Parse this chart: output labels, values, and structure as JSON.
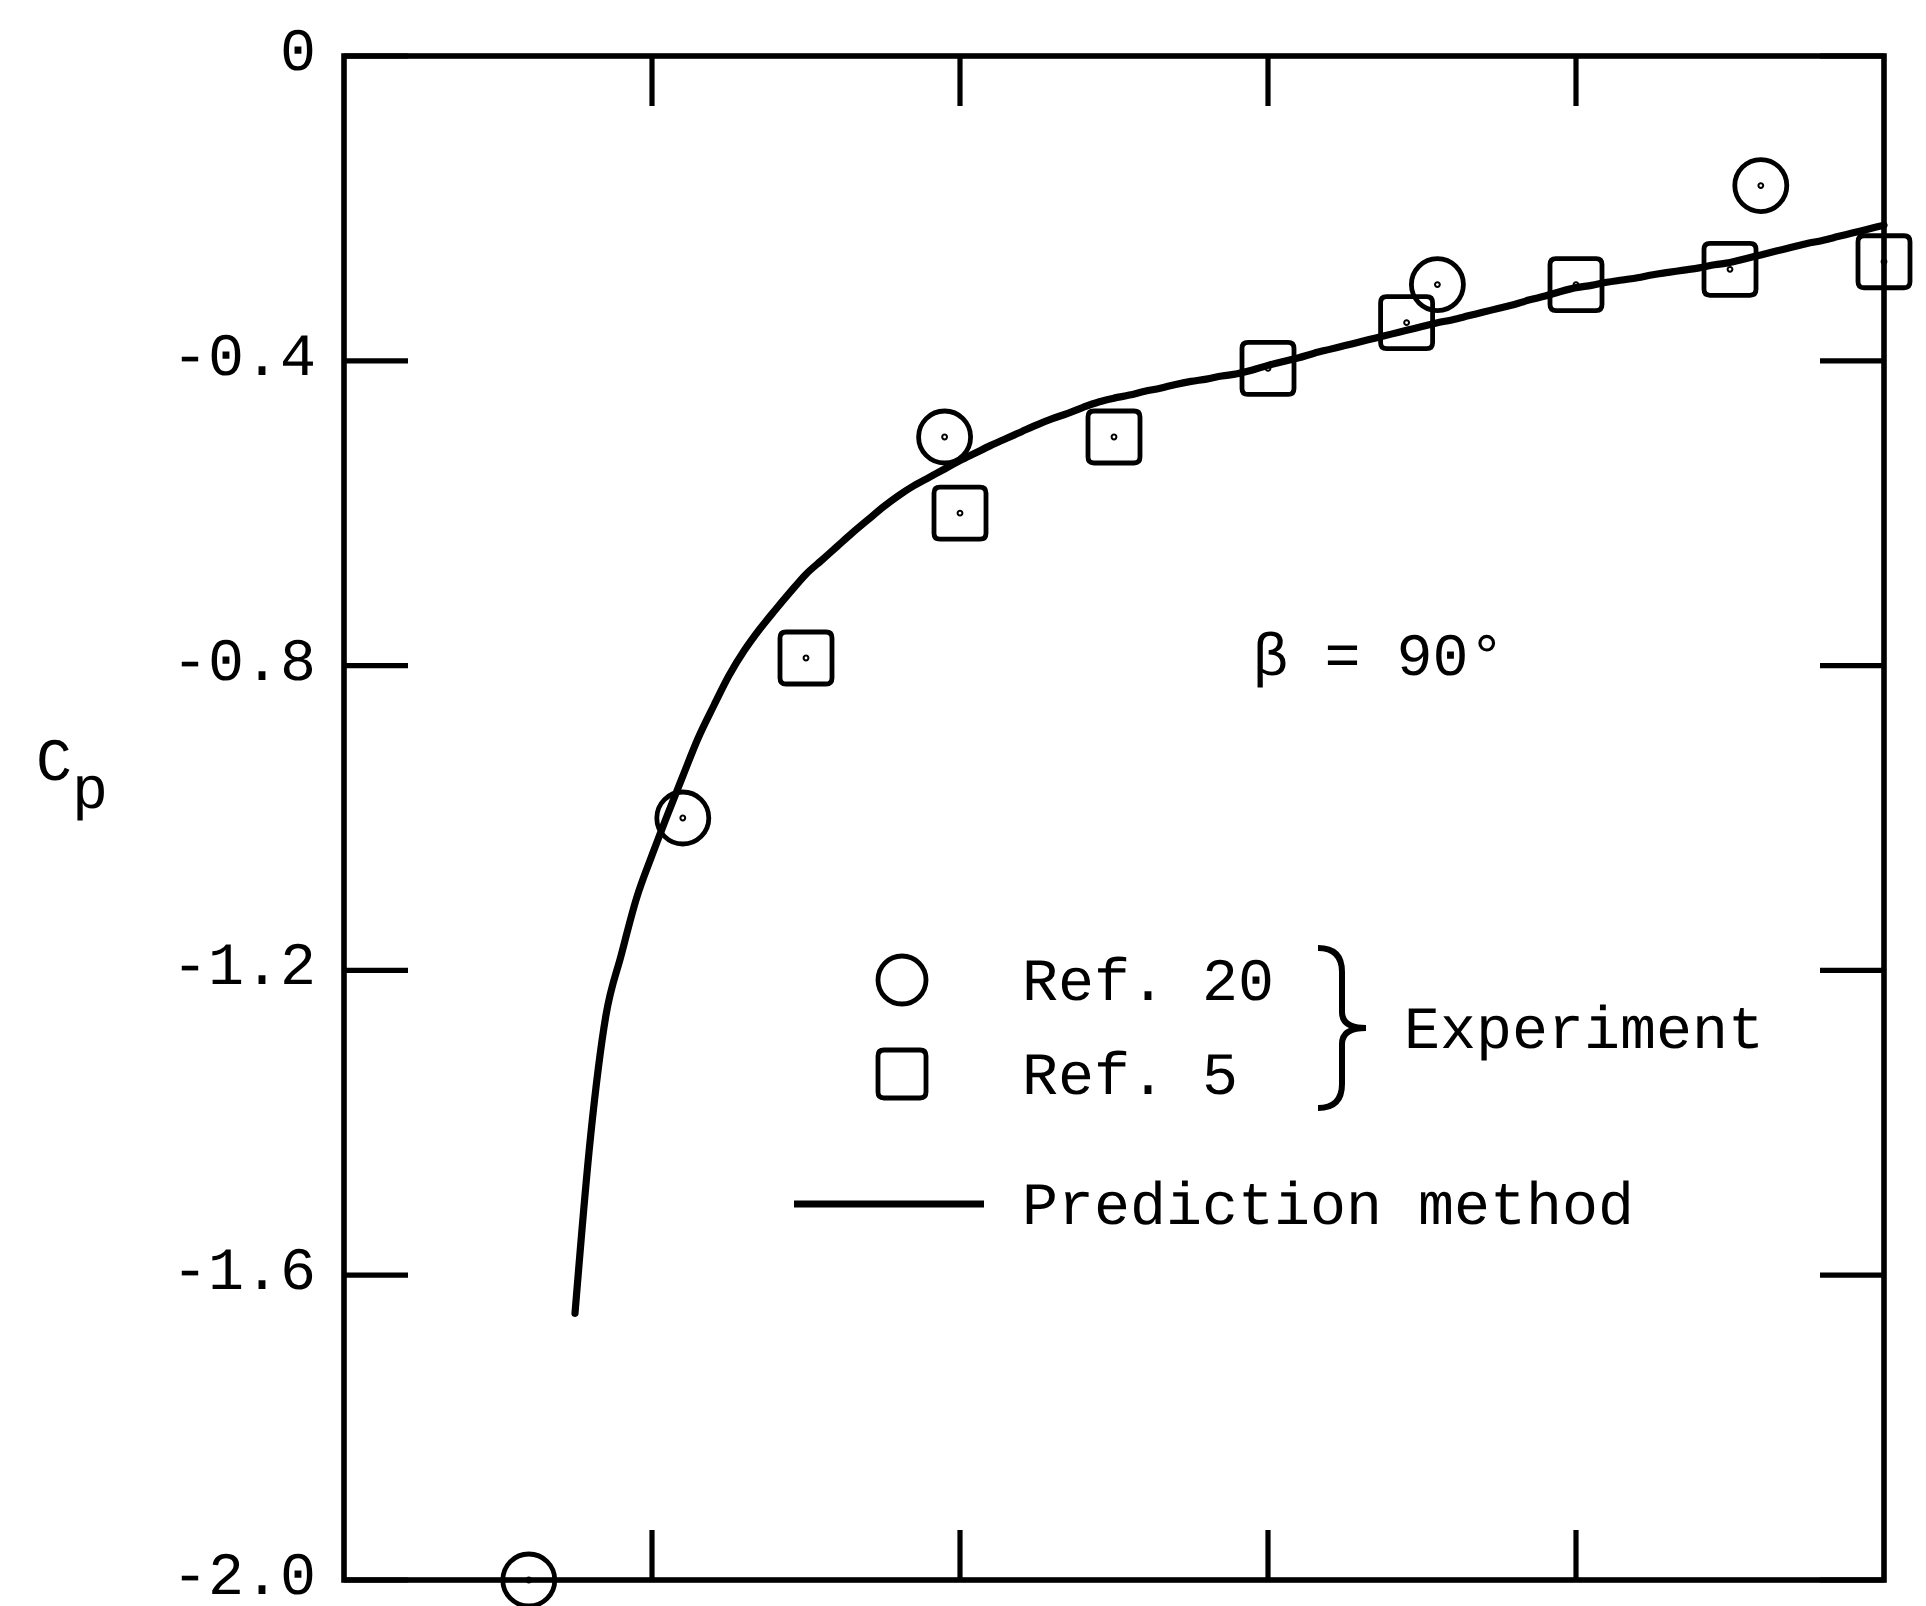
{
  "chart_data": {
    "type": "scatter",
    "ylabel": "C$_{p}$",
    "annotations": [
      "β = 90°"
    ],
    "legend_title": "Experiment",
    "legend": "bottom right",
    "tick_labels": "y",
    "categories": [
      null,
      null,
      null,
      null,
      null,
      null,
      null,
      null,
      null,
      null,
      null,
      null,
      null,
      null,
      null,
      null,
      null,
      null,
      null,
      null,
      null,
      null,
      null,
      null,
      null,
      null,
      null,
      null,
      null,
      null,
      null,
      null,
      null,
      null,
      null,
      null,
      null,
      null,
      null,
      null,
      null,
      null,
      null,
      null,
      null,
      null,
      null,
      null,
      null,
      null,
      null,
      null,
      null,
      null,
      null,
      null,
      null,
      null,
      null,
      null,
      null,
      null,
      null,
      null,
      null,
      null,
      null,
      null,
      null,
      null,
      null,
      null,
      null,
      null,
      null,
      null,
      null,
      null,
      null,
      null,
      null,
      null,
      null,
      null,
      null,
      null,
      null,
      null,
      null,
      null,
      null,
      null,
      null,
      null,
      null,
      null,
      null,
      null,
      null,
      null,
      null
    ],
    "ylim": [
      -2,
      0
    ],
    "yticks": [
      0,
      -0.4,
      -0.8,
      -1.2,
      -1.6,
      {
        "value": -2,
        "label": "-2.0"
      }
    ],
    "series": [
      {
        "name": "Ref. 20",
        "color": "#000000",
        "marker": "circle",
        "values": [
          null,
          null,
          null,
          null,
          null,
          null,
          null,
          null,
          null,
          null,
          null,
          null,
          -2.0,
          null,
          null,
          null,
          null,
          null,
          null,
          null,
          null,
          null,
          -1.0,
          null,
          null,
          null,
          null,
          null,
          null,
          null,
          null,
          null,
          null,
          null,
          null,
          null,
          null,
          null,
          null,
          -0.5,
          null,
          null,
          null,
          null,
          null,
          null,
          null,
          null,
          null,
          null,
          null,
          null,
          null,
          null,
          null,
          null,
          null,
          null,
          null,
          null,
          null,
          null,
          null,
          null,
          null,
          null,
          null,
          null,
          null,
          null,
          null,
          -0.3,
          null,
          null,
          null,
          null,
          null,
          null,
          null,
          null,
          null,
          null,
          null,
          null,
          null,
          null,
          null,
          null,
          null,
          null,
          null,
          null,
          -0.17,
          null,
          null,
          null,
          null,
          null,
          null,
          null,
          null
        ]
      },
      {
        "name": "Ref. 5",
        "color": "#000000",
        "marker": "square",
        "values": [
          null,
          null,
          null,
          null,
          null,
          null,
          null,
          null,
          null,
          null,
          null,
          null,
          null,
          null,
          null,
          null,
          null,
          null,
          null,
          null,
          null,
          null,
          null,
          null,
          null,
          null,
          null,
          null,
          null,
          null,
          -0.79,
          null,
          null,
          null,
          null,
          null,
          null,
          null,
          null,
          null,
          -0.6,
          null,
          null,
          null,
          null,
          null,
          null,
          null,
          null,
          null,
          -0.5,
          null,
          null,
          null,
          null,
          null,
          null,
          null,
          null,
          null,
          -0.41,
          null,
          null,
          null,
          null,
          null,
          null,
          null,
          null,
          -0.35,
          null,
          null,
          null,
          null,
          null,
          null,
          null,
          null,
          null,
          null,
          -0.3,
          null,
          null,
          null,
          null,
          null,
          null,
          null,
          null,
          null,
          -0.28,
          null,
          null,
          null,
          null,
          null,
          null,
          null,
          null,
          null,
          -0.27
        ]
      },
      {
        "name": "Prediction method",
        "type": "line",
        "color": "#000000",
        "line_style": "solid",
        "values": [
          null,
          null,
          null,
          null,
          null,
          null,
          null,
          null,
          null,
          null,
          null,
          null,
          null,
          null,
          null,
          -1.65,
          -1.42,
          -1.26,
          -1.18,
          -1.105,
          -1.049,
          -0.996,
          -0.945,
          -0.895,
          -0.853,
          -0.813,
          -0.78,
          -0.752,
          -0.727,
          -0.703,
          -0.68,
          -0.662,
          -0.644,
          -0.626,
          -0.609,
          -0.592,
          -0.577,
          -0.564,
          -0.553,
          -0.542,
          -0.531,
          -0.521,
          -0.511,
          -0.502,
          -0.493,
          -0.484,
          -0.476,
          -0.469,
          -0.461,
          -0.454,
          -0.449,
          -0.445,
          -0.44,
          -0.436,
          -0.431,
          -0.427,
          -0.424,
          -0.42,
          -0.417,
          -0.412,
          -0.406,
          -0.401,
          -0.396,
          -0.39,
          -0.385,
          -0.38,
          -0.375,
          -0.37,
          -0.365,
          -0.36,
          -0.355,
          -0.35,
          -0.346,
          -0.341,
          -0.336,
          -0.331,
          -0.326,
          -0.32,
          -0.315,
          -0.309,
          -0.304,
          -0.301,
          -0.297,
          -0.294,
          -0.291,
          -0.287,
          -0.284,
          -0.281,
          -0.278,
          -0.274,
          -0.271,
          -0.266,
          -0.261,
          -0.256,
          -0.251,
          -0.246,
          -0.242,
          -0.237,
          -0.232,
          -0.227,
          -0.222
        ]
      }
    ]
  }
}
